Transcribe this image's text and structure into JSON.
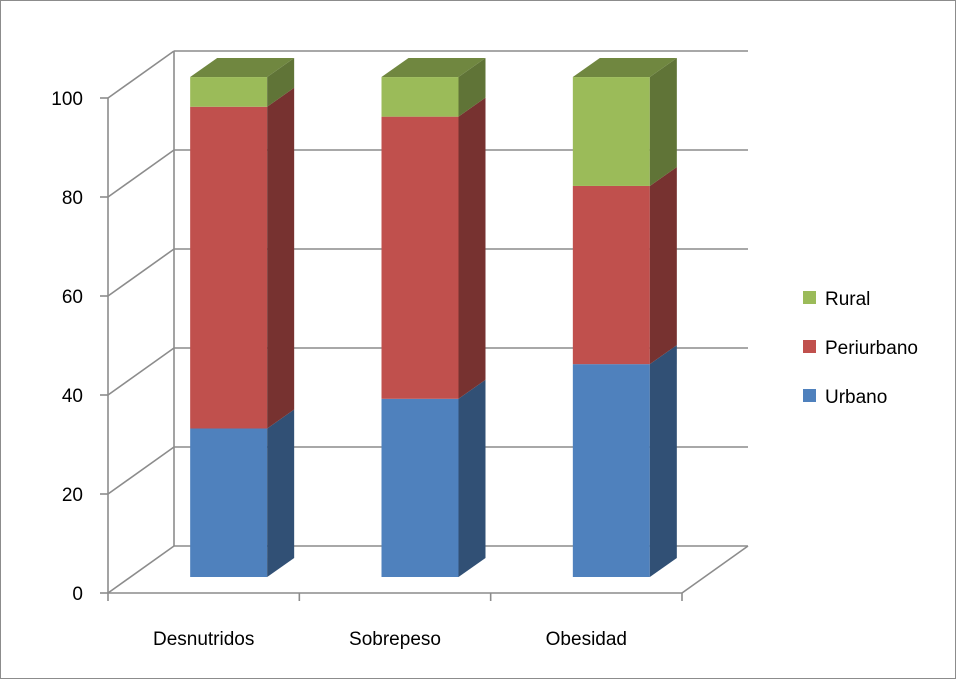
{
  "chart_data": {
    "type": "bar",
    "stacked": true,
    "three_d": true,
    "categories": [
      "Desnutridos",
      "Sobrepeso",
      "Obesidad"
    ],
    "series": [
      {
        "name": "Urbano",
        "values": [
          30,
          36,
          43
        ],
        "color": "#4f81bd"
      },
      {
        "name": "Periurbano",
        "values": [
          65,
          57,
          36
        ],
        "color": "#c0504d"
      },
      {
        "name": "Rural",
        "values": [
          6,
          8,
          22
        ],
        "color": "#9bbb59"
      }
    ],
    "ylim": [
      0,
      100
    ],
    "yticks": [
      0,
      20,
      40,
      60,
      80,
      100
    ],
    "grid": true,
    "legend": {
      "position": "right",
      "order": [
        "Rural",
        "Periurbano",
        "Urbano"
      ]
    }
  }
}
